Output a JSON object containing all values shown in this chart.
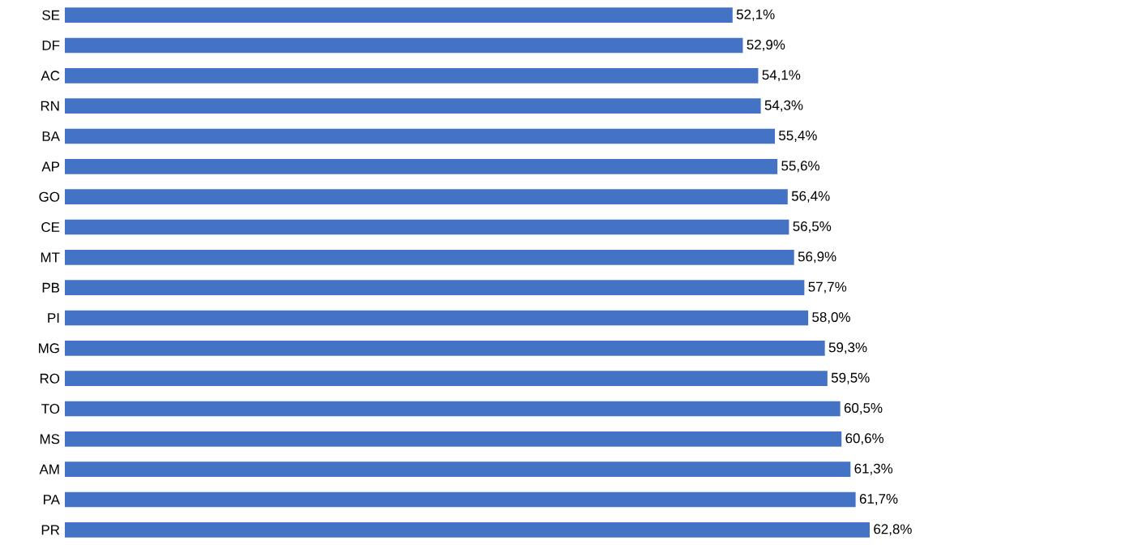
{
  "chart_data": {
    "type": "bar",
    "orientation": "horizontal",
    "color": "#4472c4",
    "tick_labels": "y",
    "categories": [
      "SE",
      "DF",
      "AC",
      "RN",
      "BA",
      "AP",
      "GO",
      "CE",
      "MT",
      "PB",
      "PI",
      "MG",
      "RO",
      "TO",
      "MS",
      "AM",
      "PA",
      "PR"
    ],
    "values": [
      52.1,
      52.9,
      54.1,
      54.3,
      55.4,
      55.6,
      56.4,
      56.5,
      56.9,
      57.7,
      58.0,
      59.3,
      59.5,
      60.5,
      60.6,
      61.3,
      61.7,
      62.8
    ],
    "value_labels": [
      "52,1%",
      "52,9%",
      "54,1%",
      "54,3%",
      "55,4%",
      "55,6%",
      "56,4%",
      "56,5%",
      "56,9%",
      "57,7%",
      "58,0%",
      "59,3%",
      "59,5%",
      "60,5%",
      "60,6%",
      "61,3%",
      "61,7%",
      "62,8%"
    ]
  }
}
